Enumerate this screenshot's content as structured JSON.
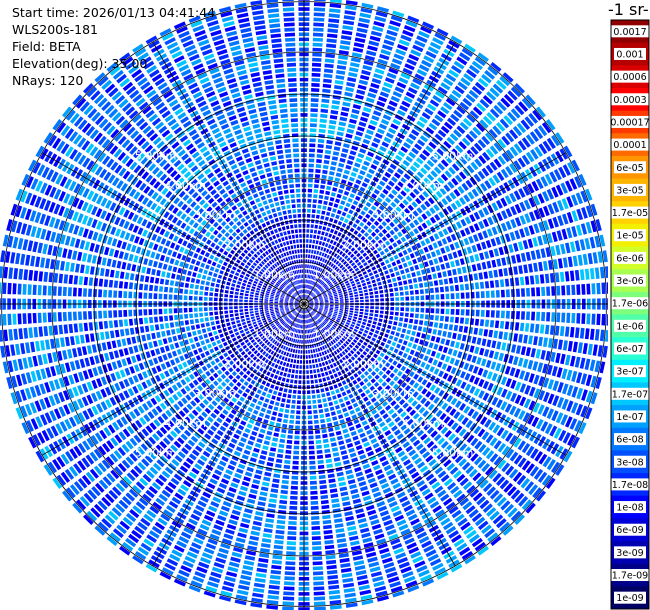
{
  "header": {
    "start_time": "Start time: 2026/01/13 04:41:44",
    "instrument": "WLS200s-181",
    "field": "Field: BETA",
    "elevation": "Elevation(deg): 35.00",
    "nrays": "NRays: 120"
  },
  "colorbar": {
    "unit_label": "-1 sr-",
    "ticks": [
      "0.0017",
      "0.001",
      "0.0006",
      "0.0003",
      "0.00017",
      "0.0001",
      "6e-05",
      "3e-05",
      "1.7e-05",
      "1e-05",
      "6e-06",
      "3e-06",
      "1.7e-06",
      "1e-06",
      "6e-07",
      "3e-07",
      "1.7e-07",
      "1e-07",
      "6e-08",
      "3e-08",
      "1.7e-08",
      "1e-08",
      "6e-09",
      "3e-09",
      "1.7e-09",
      "1e-09"
    ],
    "colors": [
      "#900000",
      "#b40000",
      "#d80000",
      "#ff0000",
      "#ff3a00",
      "#ff6a00",
      "#ff9500",
      "#ffb400",
      "#ffd200",
      "#f2f000",
      "#d2ff28",
      "#a8ff50",
      "#7dff7d",
      "#50ffa8",
      "#28ffd2",
      "#00f0ff",
      "#00c8ff",
      "#00a0ff",
      "#0078ff",
      "#0050ff",
      "#0028ff",
      "#0000ff",
      "#0000d8",
      "#0000b0",
      "#000088",
      "#000064"
    ]
  },
  "chart_data": {
    "type": "heatmap",
    "projection": "polar (PPI scan)",
    "field": "BETA",
    "elevation_deg": 35.0,
    "n_rays": 120,
    "range_rings_km": [
      1,
      2,
      3,
      4,
      5,
      6
    ],
    "ring_labels": [
      "1.00km",
      "2.00km",
      "3.00km",
      "4.00km",
      "5.00km"
    ],
    "spoke_interval_deg": 30,
    "dominant_value_range": [
      "6e-09",
      "1.7e-07"
    ],
    "enhanced_band_km": [
      4.0,
      4.5
    ],
    "enhanced_band_azimuth_deg": [
      300,
      60
    ],
    "enhanced_band_value": "1.7e-07"
  }
}
